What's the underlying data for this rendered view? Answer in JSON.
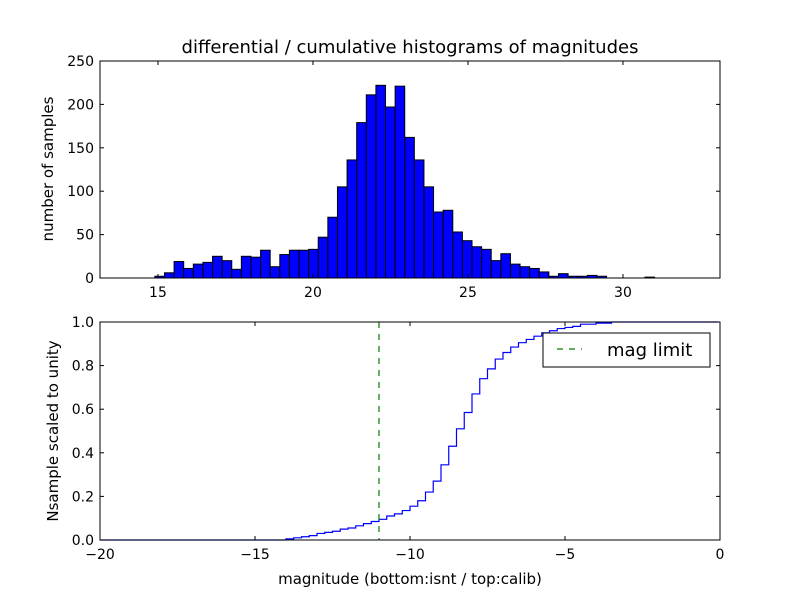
{
  "chart_data": [
    {
      "type": "bar",
      "title": "differential / cumulative histograms of magnitudes",
      "xlabel": "",
      "ylabel": "number of samples",
      "xlim": [
        13.13,
        33.13
      ],
      "ylim": [
        0,
        250
      ],
      "xticks": [
        15,
        20,
        25,
        30
      ],
      "yticks": [
        0,
        50,
        100,
        150,
        200,
        250
      ],
      "bin_start": 14.9,
      "bin_width": 0.31,
      "values": [
        2,
        6,
        19,
        11,
        16,
        18,
        25,
        20,
        10,
        25,
        24,
        32,
        13,
        27,
        32,
        32,
        33,
        47,
        70,
        105,
        136,
        179,
        211,
        222,
        197,
        221,
        162,
        136,
        105,
        76,
        78,
        53,
        43,
        36,
        33,
        20,
        28,
        16,
        13,
        11,
        7,
        2,
        5,
        2,
        2,
        3,
        2,
        0,
        0,
        0,
        0,
        1
      ],
      "color": "#0000ff"
    },
    {
      "type": "line",
      "xlabel": "magnitude (bottom:isnt / top:calib)",
      "ylabel": "Nsample scaled to unity",
      "xlim": [
        -20,
        0
      ],
      "ylim": [
        0,
        1
      ],
      "xticks": [
        -20,
        -15,
        -10,
        -5,
        0
      ],
      "yticks": [
        0.0,
        0.2,
        0.4,
        0.6,
        0.8,
        1.0
      ],
      "series": [
        {
          "name": "cumulative",
          "color": "#0000ff",
          "step": true,
          "x": [
            -20,
            -14.5,
            -14,
            -13.75,
            -13.5,
            -13.25,
            -13,
            -12.75,
            -12.5,
            -12.25,
            -12,
            -11.75,
            -11.5,
            -11.25,
            -11,
            -10.75,
            -10.5,
            -10.25,
            -10,
            -9.75,
            -9.5,
            -9.25,
            -9,
            -8.75,
            -8.5,
            -8.25,
            -8,
            -7.75,
            -7.5,
            -7.25,
            -7,
            -6.75,
            -6.5,
            -6.25,
            -6,
            -5.75,
            -5.5,
            -5.25,
            -5,
            -4.75,
            -4.5,
            -4,
            -3.5,
            -0.05
          ],
          "y": [
            0,
            0,
            0.005,
            0.01,
            0.015,
            0.02,
            0.03,
            0.035,
            0.04,
            0.05,
            0.055,
            0.065,
            0.075,
            0.085,
            0.095,
            0.11,
            0.12,
            0.135,
            0.155,
            0.18,
            0.22,
            0.27,
            0.345,
            0.43,
            0.51,
            0.585,
            0.67,
            0.74,
            0.785,
            0.83,
            0.86,
            0.885,
            0.905,
            0.92,
            0.935,
            0.95,
            0.96,
            0.97,
            0.975,
            0.98,
            0.99,
            0.995,
            1.0,
            1.0
          ]
        },
        {
          "name": "mag limit",
          "color": "#008000",
          "dashed": true,
          "vline": -11
        }
      ],
      "legend": {
        "label": "mag limit",
        "placement": "top-right"
      }
    }
  ]
}
